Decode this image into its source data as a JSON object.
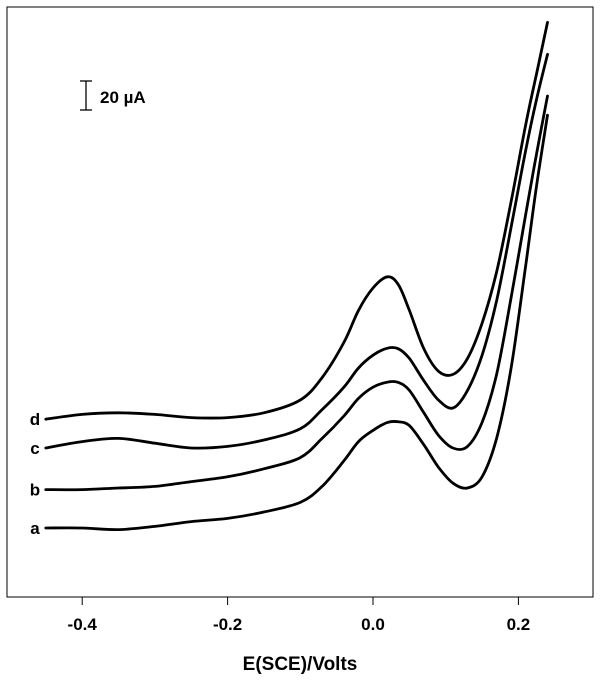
{
  "chart_data": {
    "type": "line",
    "title": "",
    "xlabel": "E(SCE)/Volts",
    "ylabel": "",
    "xlim": [
      -0.5,
      0.3
    ],
    "x_ticks": [
      -0.4,
      -0.2,
      0.0,
      0.2
    ],
    "x_tick_labels": [
      "-0.4",
      "-0.2",
      "0.0",
      "0.2"
    ],
    "y_unit": "µA",
    "y_axis_values_printed": false,
    "ylim": [
      0,
      158
    ],
    "scale_bar": {
      "label": "20 µA",
      "value": 20
    },
    "grid": false,
    "legend": "none",
    "line_color": "#000000",
    "series": [
      {
        "name": "a",
        "x": [
          -0.45,
          -0.4,
          -0.35,
          -0.3,
          -0.25,
          -0.2,
          -0.15,
          -0.1,
          -0.07,
          -0.04,
          -0.02,
          0.0,
          0.02,
          0.035,
          0.05,
          0.07,
          0.09,
          0.11,
          0.13,
          0.15,
          0.17,
          0.19,
          0.21,
          0.225,
          0.24
        ],
        "y": [
          10.0,
          10.0,
          9.5,
          10.5,
          12.0,
          13.0,
          15.0,
          18.0,
          23.0,
          31.0,
          37.0,
          40.5,
          43.0,
          43.2,
          42.0,
          36.0,
          29.0,
          24.0,
          22.5,
          26.0,
          38.0,
          60.0,
          92.0,
          117.0,
          139.0
        ]
      },
      {
        "name": "b",
        "x": [
          -0.45,
          -0.4,
          -0.35,
          -0.3,
          -0.25,
          -0.2,
          -0.15,
          -0.1,
          -0.07,
          -0.04,
          -0.02,
          0.0,
          0.02,
          0.035,
          0.05,
          0.07,
          0.09,
          0.11,
          0.13,
          0.15,
          0.17,
          0.19,
          0.21,
          0.225,
          0.24
        ],
        "y": [
          22.0,
          22.0,
          22.5,
          23.0,
          24.5,
          26.0,
          28.5,
          32.0,
          38.0,
          45.0,
          50.5,
          54.0,
          55.6,
          55.5,
          53.0,
          46.0,
          39.0,
          35.0,
          35.5,
          43.0,
          58.0,
          82.0,
          108.0,
          127.0,
          145.0
        ]
      },
      {
        "name": "c",
        "x": [
          -0.45,
          -0.4,
          -0.35,
          -0.3,
          -0.25,
          -0.2,
          -0.15,
          -0.1,
          -0.07,
          -0.04,
          -0.02,
          0.0,
          0.02,
          0.035,
          0.05,
          0.07,
          0.09,
          0.11,
          0.13,
          0.15,
          0.17,
          0.19,
          0.21,
          0.225,
          0.24
        ],
        "y": [
          35.0,
          37.0,
          38.0,
          36.5,
          35.0,
          35.5,
          37.5,
          41.0,
          47.0,
          54.0,
          60.0,
          64.0,
          66.2,
          66.0,
          63.0,
          56.0,
          50.0,
          47.5,
          53.0,
          64.0,
          81.0,
          104.0,
          128.0,
          144.0,
          158.0
        ]
      },
      {
        "name": "d",
        "x": [
          -0.45,
          -0.4,
          -0.35,
          -0.3,
          -0.25,
          -0.2,
          -0.15,
          -0.1,
          -0.07,
          -0.04,
          -0.02,
          0.0,
          0.02,
          0.035,
          0.05,
          0.07,
          0.09,
          0.11,
          0.13,
          0.15,
          0.17,
          0.19,
          0.21,
          0.225,
          0.24
        ],
        "y": [
          44.0,
          45.5,
          46.0,
          45.5,
          44.5,
          44.5,
          46.0,
          50.0,
          57.0,
          68.0,
          78.0,
          85.0,
          88.5,
          86.0,
          78.0,
          66.0,
          59.0,
          58.0,
          63.0,
          74.0,
          90.0,
          112.0,
          136.0,
          152.0,
          168.0
        ]
      }
    ]
  }
}
